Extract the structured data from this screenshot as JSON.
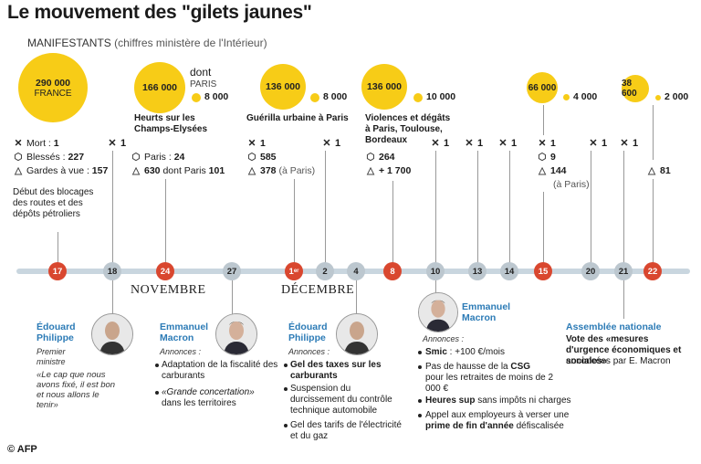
{
  "title": "Le mouvement des \"gilets jaunes\"",
  "subtitle_main": "MANIFESTANTS",
  "subtitle_note": "(chiffres ministère de l'Intérieur)",
  "bubbles": {
    "b1": {
      "value": "290 000",
      "label": "FRANCE"
    },
    "b2": {
      "value": "166 000",
      "dont": "dont",
      "paris_label": "PARIS",
      "paris": "8 000",
      "caption": "Heurts sur les Champs-Elysées"
    },
    "b3": {
      "value": "136 000",
      "paris": "8 000",
      "caption": "Guérilla urbaine à Paris"
    },
    "b4": {
      "value": "136 000",
      "paris": "10 000",
      "caption": "Violences et dégâts à Paris, Toulouse, Bordeaux"
    },
    "b5": {
      "value": "66 000",
      "paris": "4 000"
    },
    "b6": {
      "value": "38 600",
      "paris": "2 000"
    }
  },
  "stats": {
    "s17_mort_label": "Mort : ",
    "s17_mort": "1",
    "s17_bless_label": "Blessés : ",
    "s17_bless": "227",
    "s17_garde_label": "Gardes à vue : ",
    "s17_garde": "157",
    "s17_note": "Début des blocages des routes et des dépôts pétroliers",
    "s24_paris_label": "Paris : ",
    "s24_paris": "24",
    "s24_garde": "630",
    "s24_garde_note": " dont Paris ",
    "s24_garde_paris": "101",
    "s1_bless": "585",
    "s1_garde": "378",
    "s1_garde_note": " (à Paris)",
    "s8_bless": "264",
    "s8_garde": "+ 1 700",
    "s15_bless": "9",
    "s15_garde": "144",
    "s15_garde_note": "(à Paris)",
    "s22_garde": "81",
    "x1": "1"
  },
  "dates": [
    "17",
    "18",
    "24",
    "27",
    "1",
    "2",
    "4",
    "8",
    "10",
    "13",
    "14",
    "15",
    "20",
    "21",
    "22"
  ],
  "date_1_sup": "er",
  "months": {
    "nov": "NOVEMBRE",
    "dec": "DÉCEMBRE"
  },
  "events": {
    "e18_name": "Édouard Philippe",
    "e18_role": "Premier ministre",
    "e18_quote": "«Le cap que nous avons fixé, il est bon et nous allons le tenir»",
    "e27_name": "Emmanuel Macron",
    "e27_ann": "Annonces :",
    "e27_i1": "Adaptation de la fiscalité des carburants",
    "e27_i2a": "«Grande concertation»",
    "e27_i2b": "dans les territoires",
    "e4_name": "Édouard Philippe",
    "e4_ann": "Annonces :",
    "e4_i1": "Gel des taxes sur les carburants",
    "e4_i2": "Suspension du durcissement du contrôle technique automobile",
    "e4_i3": "Gel des tarifs de l'électricité et du gaz",
    "e10_name": "Emmanuel Macron",
    "e10_ann": "Annonces :",
    "e10_i1a": "Smic",
    "e10_i1b": " : +100 €/mois",
    "e10_i2a": "Pas de hausse de la ",
    "e10_i2b": "CSG",
    "e10_i2c": "pour les retraites de moins de 2 000 €",
    "e10_i3a": "Heures sup",
    "e10_i3b": " sans impôts ni charges",
    "e10_i4a": "Appel aux employeurs à verser une ",
    "e10_i4b": "prime de fin d'année",
    "e10_i4c": " défiscalisée",
    "e21_name": "Assemblée nationale",
    "e21_t1": "Vote des «mesures d'urgence économiques et sociales»",
    "e21_t2": "annoncées par E. Macron"
  },
  "credit": "© AFP",
  "colors": {
    "yellow": "#f7cc17",
    "red": "#d9472f",
    "blue": "#2c7bb6",
    "axis": "#c9d6df"
  }
}
